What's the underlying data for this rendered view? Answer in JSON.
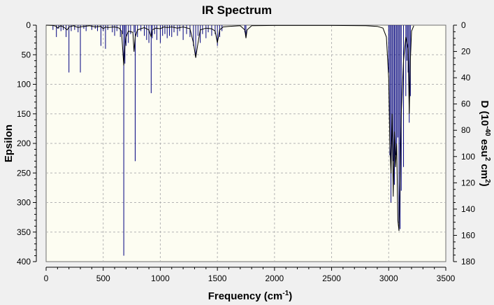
{
  "window": {
    "title": "IR Spectrum"
  },
  "chart_data": {
    "type": "line",
    "title": "IR Spectrum",
    "xlabel": "Frequency (cm-1)",
    "xlabel_parts": {
      "main": "Frequency (cm",
      "sup": "-1",
      "end": ")"
    },
    "ylabel_left": "Epsilon",
    "ylabel_right": "D (10-40 esu2 cm2)",
    "ylabel_right_parts": {
      "a": "D (10",
      "s1": "-40",
      "b": " esu",
      "s2": "2",
      "c": " cm",
      "s3": "2",
      "d": ")"
    },
    "xlim": [
      0,
      3500
    ],
    "ylim_left": [
      0,
      400
    ],
    "ylim_right": [
      0,
      180
    ],
    "inverted_y": true,
    "grid": true,
    "x_ticks": [
      0,
      500,
      1000,
      1500,
      2000,
      2500,
      3000,
      3500
    ],
    "y_left_ticks": [
      0,
      50,
      100,
      150,
      200,
      250,
      300,
      350,
      400
    ],
    "y_right_ticks": [
      0,
      20,
      40,
      60,
      80,
      100,
      120,
      140,
      160,
      180
    ],
    "colors": {
      "plot_bg": "#fdfdf2",
      "frame_bg": "#f0f0f0",
      "spectrum": "#000000",
      "sticks": "#00007f",
      "grid": "#b4b4b4"
    },
    "series": [
      {
        "kind": "spectrum-curve",
        "x": [
          0,
          60,
          90,
          100,
          110,
          130,
          160,
          185,
          200,
          240,
          280,
          300,
          330,
          380,
          430,
          480,
          500,
          520,
          540,
          600,
          640,
          660,
          680,
          690,
          700,
          720,
          760,
          770,
          780,
          800,
          830,
          860,
          900,
          920,
          930,
          960,
          1000,
          1030,
          1060,
          1100,
          1150,
          1200,
          1260,
          1290,
          1310,
          1330,
          1350,
          1400,
          1450,
          1480,
          1500,
          1520,
          1550,
          1600,
          1700,
          1740,
          1750,
          1760,
          1800,
          2000,
          2500,
          2800,
          2900,
          2950,
          2980,
          3000,
          3010,
          3020,
          3030,
          3040,
          3050,
          3060,
          3070,
          3080,
          3090,
          3100,
          3110,
          3130,
          3150,
          3170,
          3180,
          3190,
          3200,
          3220
        ],
        "y": [
          0,
          0.5,
          2,
          5,
          3,
          1,
          4,
          8,
          3,
          1,
          4,
          3,
          2,
          1,
          3,
          2,
          6,
          3,
          4,
          3,
          5,
          10,
          68,
          35,
          20,
          10,
          12,
          45,
          20,
          8,
          6,
          4,
          8,
          20,
          8,
          5,
          6,
          3,
          4,
          3,
          5,
          3,
          6,
          30,
          55,
          30,
          8,
          5,
          6,
          10,
          30,
          8,
          3,
          2,
          1,
          8,
          22,
          8,
          1,
          0.5,
          0.5,
          1,
          2,
          5,
          20,
          90,
          200,
          250,
          150,
          290,
          180,
          240,
          200,
          330,
          348,
          260,
          150,
          60,
          20,
          40,
          150,
          60,
          10,
          1
        ],
        "line_style": "solid"
      },
      {
        "kind": "sticks",
        "x": [
          60,
          90,
          110,
          130,
          150,
          175,
          200,
          220,
          250,
          280,
          300,
          330,
          350,
          400,
          430,
          450,
          480,
          500,
          520,
          540,
          580,
          600,
          620,
          650,
          670,
          680,
          690,
          700,
          720,
          740,
          770,
          780,
          800,
          830,
          860,
          880,
          900,
          920,
          930,
          950,
          970,
          1000,
          1020,
          1040,
          1060,
          1080,
          1100,
          1120,
          1150,
          1170,
          1200,
          1230,
          1260,
          1290,
          1310,
          1330,
          1350,
          1370,
          1400,
          1420,
          1450,
          1480,
          1500,
          1520,
          1540,
          1740,
          1750,
          3000,
          3010,
          3020,
          3030,
          3040,
          3050,
          3060,
          3070,
          3080,
          3090,
          3100,
          3110,
          3130,
          3150,
          3160,
          3170,
          3180,
          3190
        ],
        "y": [
          8,
          20,
          6,
          10,
          8,
          20,
          80,
          10,
          8,
          12,
          80,
          6,
          10,
          8,
          6,
          10,
          35,
          10,
          40,
          8,
          12,
          18,
          10,
          20,
          15,
          390,
          65,
          35,
          30,
          15,
          12,
          230,
          20,
          10,
          18,
          25,
          30,
          115,
          22,
          15,
          25,
          30,
          18,
          15,
          22,
          18,
          20,
          12,
          18,
          10,
          25,
          15,
          20,
          35,
          55,
          18,
          30,
          15,
          22,
          12,
          18,
          15,
          35,
          20,
          10,
          12,
          18,
          80,
          220,
          300,
          180,
          230,
          270,
          220,
          200,
          190,
          335,
          345,
          280,
          240,
          120,
          60,
          80,
          165,
          120
        ]
      }
    ]
  }
}
